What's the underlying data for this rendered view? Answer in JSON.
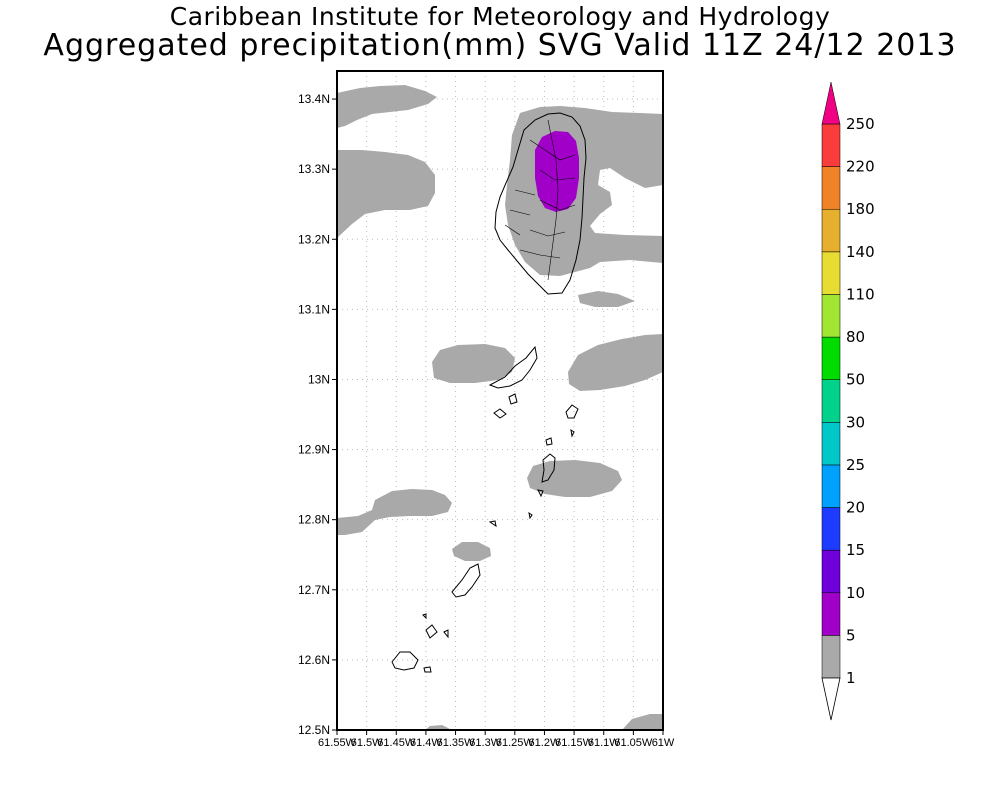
{
  "title": {
    "line1": "Caribbean Institute for Meteorology and Hydrology",
    "line2": "Aggregated precipitation(mm) SVG Valid 11Z 24/12 2013"
  },
  "map": {
    "lat_range": [
      12.5,
      13.44
    ],
    "lon_range": [
      -61.55,
      -61.0
    ],
    "lat_ticks": [
      {
        "value": 13.4,
        "label": "13.4N"
      },
      {
        "value": 13.3,
        "label": "13.3N"
      },
      {
        "value": 13.2,
        "label": "13.2N"
      },
      {
        "value": 13.1,
        "label": "13.1N"
      },
      {
        "value": 13.0,
        "label": "13N"
      },
      {
        "value": 12.9,
        "label": "12.9N"
      },
      {
        "value": 12.8,
        "label": "12.8N"
      },
      {
        "value": 12.7,
        "label": "12.7N"
      },
      {
        "value": 12.6,
        "label": "12.6N"
      },
      {
        "value": 12.5,
        "label": "12.5N"
      }
    ],
    "lon_ticks": [
      {
        "value": -61.55,
        "label": "61.55W"
      },
      {
        "value": -61.5,
        "label": "61.5W"
      },
      {
        "value": -61.45,
        "label": "61.45W"
      },
      {
        "value": -61.4,
        "label": "61.4W"
      },
      {
        "value": -61.35,
        "label": "61.35W"
      },
      {
        "value": -61.3,
        "label": "61.3W"
      },
      {
        "value": -61.25,
        "label": "61.25W"
      },
      {
        "value": -61.2,
        "label": "61.2W"
      },
      {
        "value": -61.15,
        "label": "61.15W"
      },
      {
        "value": -61.1,
        "label": "61.1W"
      },
      {
        "value": -61.05,
        "label": "61.05W"
      },
      {
        "value": -61.0,
        "label": "61W"
      }
    ],
    "grid": "dotted",
    "precip_fill_colors": {
      "1-5": "#a9a9a9",
      "5-10": "#a000c8"
    }
  },
  "colorbar": {
    "levels": [
      {
        "label": "1",
        "color": "#ffffff"
      },
      {
        "label": "5",
        "color": "#a9a9a9"
      },
      {
        "label": "10",
        "color": "#a000c8"
      },
      {
        "label": "15",
        "color": "#6e00dc"
      },
      {
        "label": "20",
        "color": "#1e3cff"
      },
      {
        "label": "25",
        "color": "#00a0ff"
      },
      {
        "label": "30",
        "color": "#00c8c8"
      },
      {
        "label": "50",
        "color": "#00d28c"
      },
      {
        "label": "80",
        "color": "#00dc00"
      },
      {
        "label": "110",
        "color": "#a0e632"
      },
      {
        "label": "140",
        "color": "#e6dc32"
      },
      {
        "label": "180",
        "color": "#e6af2d"
      },
      {
        "label": "220",
        "color": "#f08228"
      },
      {
        "label": "250",
        "color": "#fa3c3c"
      }
    ],
    "over_color": "#f00082",
    "under_color": "#ffffff"
  }
}
